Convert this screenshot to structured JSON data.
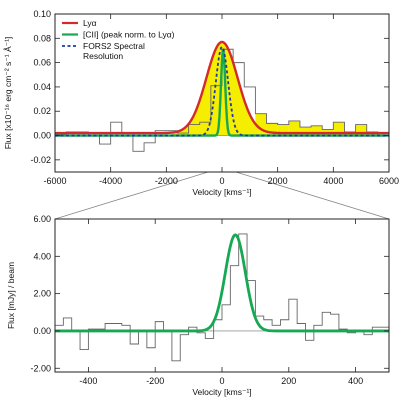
{
  "chart_data": [
    {
      "type": "line",
      "xlabel": "Velocity [kms⁻¹]",
      "ylabel": "Flux [x10⁻¹⁶ erg cm⁻² s⁻¹ Å⁻¹]",
      "xlim": [
        -6000,
        6000
      ],
      "ylim": [
        -0.03,
        0.1
      ],
      "xticks": [
        "-6000",
        "-4000",
        "-2000",
        "0",
        "2000",
        "4000",
        "6000"
      ],
      "yticks": [
        "-0.02",
        "0.00",
        "0.02",
        "0.04",
        "0.06",
        "0.08",
        "0.10"
      ],
      "legend": [
        {
          "label": "Lyα",
          "color": "#d42a2a",
          "style": "solid"
        },
        {
          "label": "[CII] (peak norm. to Lyα)",
          "color": "#16a852",
          "style": "solid"
        },
        {
          "label": "FORS2 Spectral",
          "label2": "Resolution",
          "color": "#1f3aa8",
          "style": "dashed"
        }
      ],
      "legend_position": "top-left",
      "fill_color": "#f5ee00",
      "series": [
        {
          "style": "histogram",
          "color": "#666666",
          "x": [
            -6000,
            -5600,
            -5200,
            -4800,
            -4400,
            -4000,
            -3600,
            -3200,
            -2800,
            -2400,
            -2000,
            -1600,
            -1200,
            -800,
            -400,
            0,
            400,
            800,
            1200,
            1600,
            2000,
            2400,
            2800,
            3200,
            3600,
            4000,
            4400,
            4800,
            5200,
            5600,
            6000
          ],
          "y": [
            0.001,
            0.003,
            0.003,
            0.0,
            -0.007,
            0.011,
            0.002,
            -0.013,
            -0.006,
            0.004,
            0.004,
            0.002,
            0.009,
            0.011,
            0.041,
            0.071,
            0.06,
            0.04,
            0.018,
            0.01,
            0.009,
            0.012,
            0.007,
            0.008,
            0.005,
            0.011,
            0.003,
            0.009,
            0.003,
            0.0,
            0.004
          ]
        },
        {
          "name": "Lyα",
          "style": "gaussian",
          "color": "#d42a2a",
          "amplitude": 0.075,
          "center": 0,
          "sigma": 560,
          "baseline": 0.002
        },
        {
          "name": "[CII] (peak norm. to Lyα)",
          "style": "gaussian",
          "color": "#16a852",
          "amplitude": 0.071,
          "center": 40,
          "sigma": 75,
          "baseline": 0.0
        },
        {
          "name": "FORS2 Spectral Resolution",
          "style": "gaussian",
          "color": "#1f3aa8",
          "amplitude": 0.073,
          "center": 0,
          "sigma": 220,
          "baseline": 0.0
        }
      ]
    },
    {
      "type": "line",
      "xlabel": "Velocity [kms⁻¹]",
      "ylabel": "Flux [mJy] / beam",
      "xlim": [
        -500,
        500
      ],
      "ylim": [
        -2.2,
        6.0
      ],
      "xticks": [
        "-400",
        "-200",
        "0",
        "200",
        "400"
      ],
      "yticks": [
        "-2.00",
        "0.00",
        "2.00",
        "4.00",
        "6.00"
      ],
      "series": [
        {
          "style": "histogram",
          "color": "#666666",
          "x": [
            -500,
            -475,
            -450,
            -425,
            -400,
            -375,
            -350,
            -325,
            -300,
            -275,
            -250,
            -225,
            -200,
            -175,
            -150,
            -125,
            -100,
            -75,
            -50,
            -25,
            0,
            25,
            50,
            75,
            100,
            125,
            150,
            175,
            200,
            225,
            250,
            275,
            300,
            325,
            350,
            375,
            400,
            425,
            450,
            475,
            500
          ],
          "y": [
            0.3,
            0.7,
            0.0,
            -1.0,
            0.1,
            0.1,
            0.4,
            0.4,
            0.3,
            -0.7,
            0.0,
            -0.9,
            0.5,
            0.0,
            -1.6,
            -0.2,
            0.2,
            -0.1,
            -0.4,
            0.6,
            1.4,
            3.5,
            5.2,
            2.7,
            0.8,
            0.6,
            0.3,
            0.6,
            1.7,
            0.4,
            -0.5,
            0.3,
            1.0,
            0.9,
            0.1,
            -0.1,
            0.0,
            -0.2,
            0.2,
            0.2,
            0.1
          ]
        },
        {
          "name": "[CII]",
          "style": "gaussian",
          "color": "#16a852",
          "amplitude": 5.15,
          "center": 40,
          "sigma": 30,
          "baseline": 0.0
        }
      ]
    }
  ]
}
